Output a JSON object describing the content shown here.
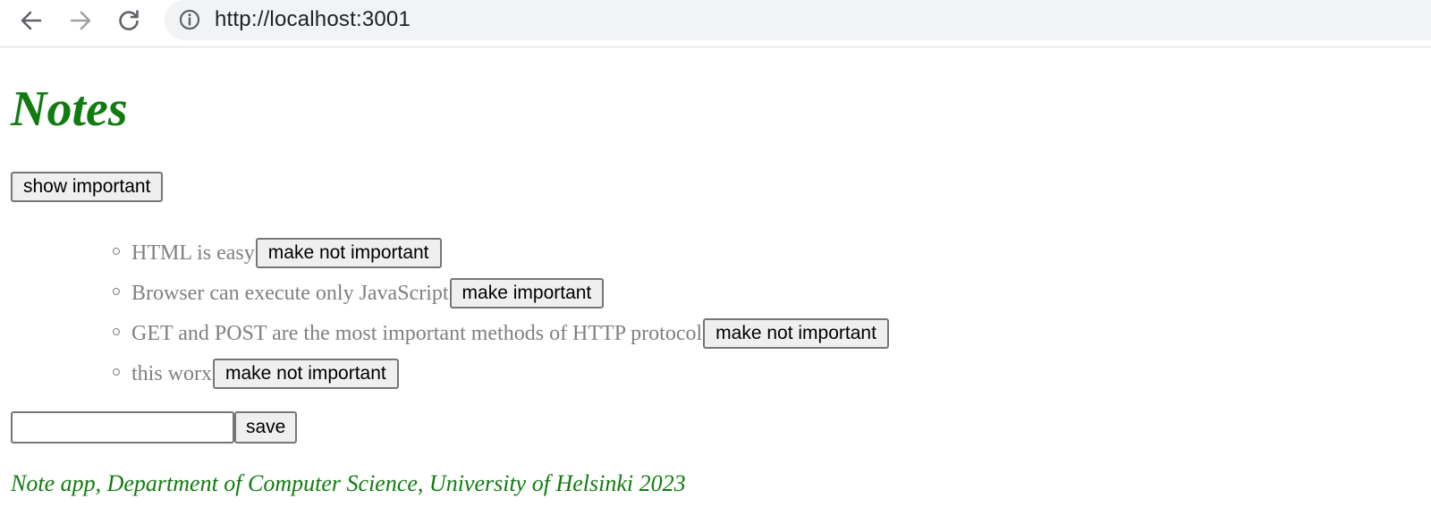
{
  "browser": {
    "url": "http://localhost:3001",
    "icons": {
      "back": "back-arrow-icon",
      "forward": "forward-arrow-icon",
      "reload": "reload-icon",
      "info": "info-icon"
    }
  },
  "page": {
    "title": "Notes",
    "show_button_label": "show important",
    "notes": [
      {
        "content": "HTML is easy",
        "toggle_label": "make not important"
      },
      {
        "content": "Browser can execute only JavaScript",
        "toggle_label": "make important"
      },
      {
        "content": "GET and POST are the most important methods of HTTP protocol",
        "toggle_label": "make not important"
      },
      {
        "content": "this worx",
        "toggle_label": "make not important"
      }
    ],
    "new_note": {
      "value": "",
      "save_label": "save"
    },
    "footer": "Note app, Department of Computer Science, University of Helsinki 2023"
  },
  "colors": {
    "title": "#107c10",
    "note_text": "#808080",
    "omnibox_bg": "#f1f3f4"
  }
}
